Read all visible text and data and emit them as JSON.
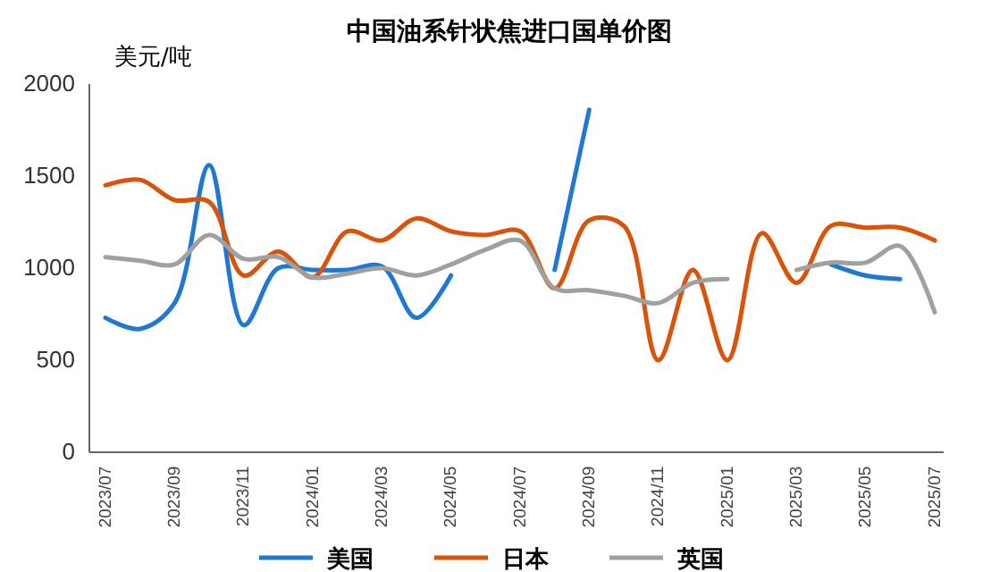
{
  "chart_data": {
    "type": "line",
    "title": "中国油系针状焦进口国单价图",
    "ylabel": "美元/吨",
    "categories": [
      "2023/07",
      null,
      "2023/09",
      null,
      "2023/11",
      null,
      "2024/01",
      null,
      "2024/03",
      null,
      "2024/05",
      null,
      "2024/07",
      null,
      "2024/09",
      null,
      "2024/11",
      null,
      "2025/01",
      null,
      "2025/03",
      null,
      "2025/05",
      null,
      "2025/07"
    ],
    "series": [
      {
        "name": "美国",
        "color": "#1f78d1",
        "values": [
          730,
          670,
          810,
          1560,
          690,
          1000,
          990,
          990,
          1010,
          730,
          960,
          null,
          null,
          990,
          1860,
          null,
          null,
          null,
          null,
          null,
          null,
          1020,
          960,
          940,
          null
        ]
      },
      {
        "name": "日本",
        "color": "#d9530b",
        "values": [
          1450,
          1480,
          1370,
          1360,
          960,
          1090,
          950,
          1200,
          1150,
          1270,
          1200,
          1180,
          1200,
          890,
          1260,
          1230,
          500,
          990,
          500,
          1190,
          920,
          1230,
          1220,
          1220,
          1150
        ]
      },
      {
        "name": "英国",
        "color": "#a0a0a0",
        "values": [
          1060,
          1040,
          1020,
          1180,
          1050,
          1060,
          950,
          970,
          1000,
          960,
          1020,
          1100,
          1150,
          890,
          880,
          850,
          810,
          920,
          940,
          null,
          990,
          1030,
          1030,
          1120,
          760
        ]
      }
    ],
    "ylim": [
      0,
      2000
    ],
    "yticks": [
      0,
      500,
      1000,
      1500,
      2000
    ],
    "grid": false,
    "legend": "bottom",
    "line_style": "solid",
    "marker": "none"
  }
}
